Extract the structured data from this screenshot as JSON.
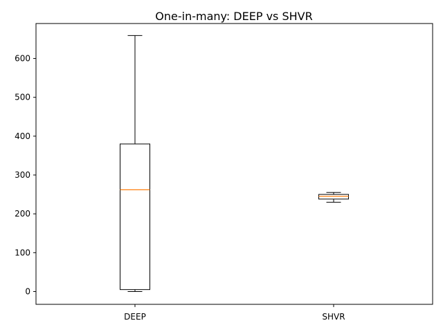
{
  "chart_data": {
    "type": "box",
    "title": "One-in-many: DEEP vs SHVR",
    "xlabel": "",
    "ylabel": "",
    "categories": [
      "DEEP",
      "SHVR"
    ],
    "ylim": [
      -33,
      690
    ],
    "yticks": [
      0,
      100,
      200,
      300,
      400,
      500,
      600
    ],
    "grid": false,
    "boxes": [
      {
        "name": "DEEP",
        "whisker_low": 0,
        "q1": 5,
        "median": 262,
        "q3": 380,
        "whisker_high": 659
      },
      {
        "name": "SHVR",
        "whisker_low": 230,
        "q1": 238,
        "median": 245,
        "q3": 250,
        "whisker_high": 255
      }
    ],
    "colors": {
      "box": "#000000",
      "median": "#ff7f0e"
    }
  }
}
